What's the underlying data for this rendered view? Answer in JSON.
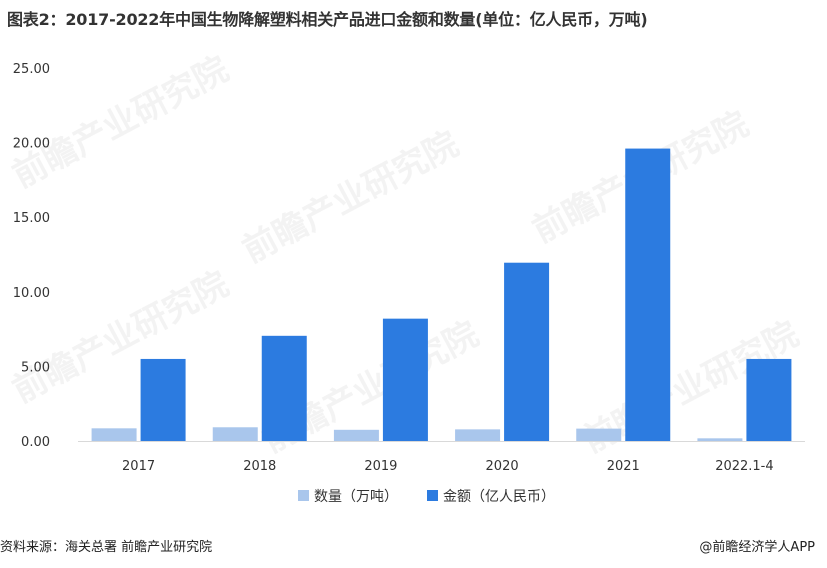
{
  "title": "图表2：2017-2022年中国生物降解塑料相关产品进口金额和数量(单位：亿人民币，万吨)",
  "source": "资料来源：海关总署 前瞻产业研究院",
  "brand": "@前瞻经济学人APP",
  "watermark_text": "前瞻产业研究院",
  "chart_data": {
    "type": "bar",
    "title": "图表2：2017-2022年中国生物降解塑料相关产品进口金额和数量(单位：亿人民币，万吨)",
    "categories": [
      "2017",
      "2018",
      "2019",
      "2020",
      "2021",
      "2022.1-4"
    ],
    "series": [
      {
        "name": "数量（万吨）",
        "color": "#a9c6ec",
        "values": [
          0.85,
          0.92,
          0.75,
          0.78,
          0.83,
          0.18
        ]
      },
      {
        "name": "金额（亿人民币）",
        "color": "#2c7be0",
        "values": [
          5.5,
          7.05,
          8.2,
          11.95,
          19.6,
          5.5
        ]
      }
    ],
    "y_ticks": [
      "0.00",
      "5.00",
      "10.00",
      "15.00",
      "20.00",
      "25.00"
    ],
    "ylim": [
      0,
      25
    ],
    "xlabel": "",
    "ylabel": "",
    "grid": false,
    "legend_position": "bottom"
  }
}
